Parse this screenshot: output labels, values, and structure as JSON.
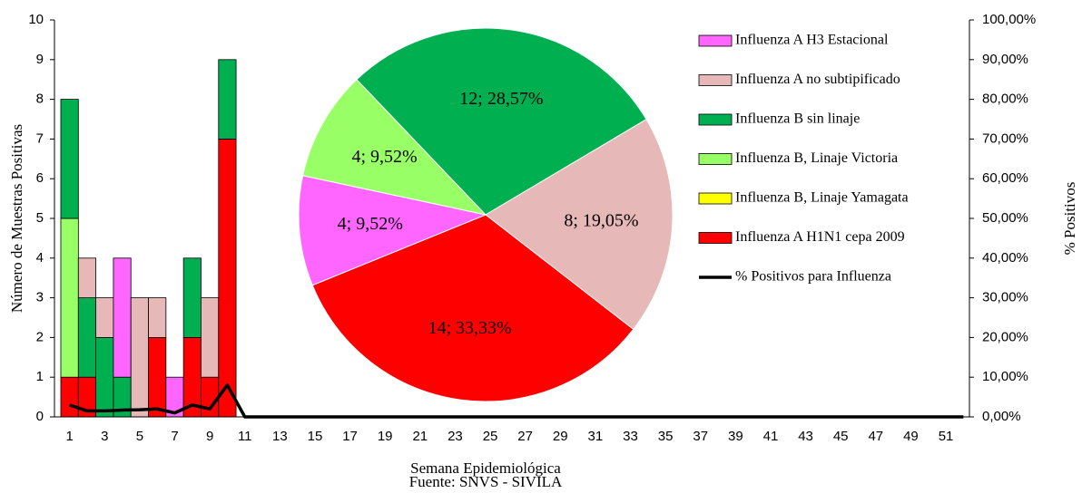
{
  "chart_data": [
    {
      "type": "bar",
      "stacked": true,
      "categories": [
        1,
        null,
        3,
        null,
        5,
        null,
        7,
        null,
        9,
        null,
        11,
        null,
        13,
        null,
        15,
        null,
        17,
        null,
        19,
        null,
        21,
        null,
        23,
        null,
        25,
        null,
        27,
        null,
        29,
        null,
        31,
        null,
        33,
        null,
        35,
        null,
        37,
        null,
        39,
        null,
        41,
        null,
        43,
        null,
        45,
        null,
        47,
        null,
        49,
        null,
        51,
        null
      ],
      "xlabel": "Semana Epidemiológica",
      "ylabel": "Número de Muestras Positivas",
      "y2label": "% Positivos",
      "source": "Fuente: SNVS - SIVILA",
      "ylim": [
        0,
        10
      ],
      "yticks": [
        0,
        1,
        2,
        3,
        4,
        5,
        6,
        7,
        8,
        9,
        10
      ],
      "y2lim": [
        0,
        100
      ],
      "y2ticks": [
        {
          "value": 0,
          "label": "0,00%"
        },
        {
          "value": 10,
          "label": "10,00%"
        },
        {
          "value": 20,
          "label": "20,00%"
        },
        {
          "value": 30,
          "label": "30,00%"
        },
        {
          "value": 40,
          "label": "40,00%"
        },
        {
          "value": 50,
          "label": "50,00%"
        },
        {
          "value": 60,
          "label": "60,00%"
        },
        {
          "value": 70,
          "label": "70,00%"
        },
        {
          "value": 80,
          "label": "80,00%"
        },
        {
          "value": 90,
          "label": "90,00%"
        },
        {
          "value": 100,
          "label": "100,00%"
        }
      ],
      "series": [
        {
          "name": "Influenza A H3 Estacional",
          "color": "#ff66ff",
          "values": [
            0,
            0,
            0,
            3,
            0,
            0,
            1,
            0,
            0,
            0,
            0,
            0,
            0,
            0,
            0,
            0,
            0,
            0,
            0,
            0,
            0,
            0,
            0,
            0,
            0,
            0,
            0,
            0,
            0,
            0,
            0,
            0,
            0,
            0,
            0,
            0,
            0,
            0,
            0,
            0,
            0,
            0,
            0,
            0,
            0,
            0,
            0,
            0,
            0,
            0,
            0,
            0
          ]
        },
        {
          "name": "Influenza A no subtipificado",
          "color": "#e6b8b7",
          "values": [
            0,
            1,
            1,
            0,
            3,
            1,
            0,
            0,
            2,
            0,
            0,
            0,
            0,
            0,
            0,
            0,
            0,
            0,
            0,
            0,
            0,
            0,
            0,
            0,
            0,
            0,
            0,
            0,
            0,
            0,
            0,
            0,
            0,
            0,
            0,
            0,
            0,
            0,
            0,
            0,
            0,
            0,
            0,
            0,
            0,
            0,
            0,
            0,
            0,
            0,
            0,
            0
          ]
        },
        {
          "name": "Influenza B sin linaje",
          "color": "#00b050",
          "values": [
            3,
            2,
            2,
            1,
            0,
            0,
            0,
            2,
            0,
            2,
            0,
            0,
            0,
            0,
            0,
            0,
            0,
            0,
            0,
            0,
            0,
            0,
            0,
            0,
            0,
            0,
            0,
            0,
            0,
            0,
            0,
            0,
            0,
            0,
            0,
            0,
            0,
            0,
            0,
            0,
            0,
            0,
            0,
            0,
            0,
            0,
            0,
            0,
            0,
            0,
            0,
            0
          ]
        },
        {
          "name": "Influenza B, Linaje Victoria",
          "color": "#99ff66",
          "values": [
            4,
            0,
            0,
            0,
            0,
            0,
            0,
            0,
            0,
            0,
            0,
            0,
            0,
            0,
            0,
            0,
            0,
            0,
            0,
            0,
            0,
            0,
            0,
            0,
            0,
            0,
            0,
            0,
            0,
            0,
            0,
            0,
            0,
            0,
            0,
            0,
            0,
            0,
            0,
            0,
            0,
            0,
            0,
            0,
            0,
            0,
            0,
            0,
            0,
            0,
            0,
            0
          ]
        },
        {
          "name": "Influenza B, Linaje Yamagata",
          "color": "#ffff00",
          "values": [
            0,
            0,
            0,
            0,
            0,
            0,
            0,
            0,
            0,
            0,
            0,
            0,
            0,
            0,
            0,
            0,
            0,
            0,
            0,
            0,
            0,
            0,
            0,
            0,
            0,
            0,
            0,
            0,
            0,
            0,
            0,
            0,
            0,
            0,
            0,
            0,
            0,
            0,
            0,
            0,
            0,
            0,
            0,
            0,
            0,
            0,
            0,
            0,
            0,
            0,
            0,
            0
          ]
        },
        {
          "name": "Influenza A H1N1 cepa 2009",
          "color": "#ff0000",
          "values": [
            1,
            1,
            0,
            0,
            0,
            2,
            0,
            2,
            1,
            7,
            0,
            0,
            0,
            0,
            0,
            0,
            0,
            0,
            0,
            0,
            0,
            0,
            0,
            0,
            0,
            0,
            0,
            0,
            0,
            0,
            0,
            0,
            0,
            0,
            0,
            0,
            0,
            0,
            0,
            0,
            0,
            0,
            0,
            0,
            0,
            0,
            0,
            0,
            0,
            0,
            0,
            0
          ]
        },
        {
          "name": "% Positivos para Influenza",
          "color": "#000000",
          "type": "line",
          "axis": "y2",
          "values": [
            3,
            1.5,
            1.5,
            1.7,
            1.8,
            2,
            1,
            3,
            2,
            8,
            0,
            0,
            0,
            0,
            0,
            0,
            0,
            0,
            0,
            0,
            0,
            0,
            0,
            0,
            0,
            0,
            0,
            0,
            0,
            0,
            0,
            0,
            0,
            0,
            0,
            0,
            0,
            0,
            0,
            0,
            0,
            0,
            0,
            0,
            0,
            0,
            0,
            0,
            0,
            0,
            0,
            0
          ]
        }
      ]
    },
    {
      "type": "pie",
      "values": [
        12,
        8,
        14,
        4,
        4
      ],
      "value_labels": [
        "12; 28,57%",
        "8; 19,05%",
        "14; 33,33%",
        "4; 9,52%",
        "4; 9,52%"
      ],
      "colors": [
        "#00b050",
        "#e6b8b7",
        "#ff0000",
        "#ff66ff",
        "#99ff66"
      ]
    }
  ]
}
